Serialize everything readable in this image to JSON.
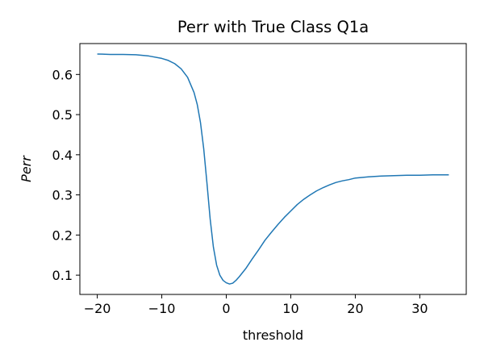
{
  "chart_data": {
    "type": "line",
    "title": "Perr with True Class Q1a",
    "xlabel": "threshold",
    "ylabel": "Perr",
    "xlim": [
      -22.7,
      37.2
    ],
    "ylim": [
      0.052,
      0.677
    ],
    "xticks": [
      -20,
      -10,
      0,
      10,
      20,
      30
    ],
    "xtick_labels": [
      "−20",
      "−10",
      "0",
      "10",
      "20",
      "30"
    ],
    "yticks": [
      0.1,
      0.2,
      0.3,
      0.4,
      0.5,
      0.6
    ],
    "ytick_labels": [
      "0.1",
      "0.2",
      "0.3",
      "0.4",
      "0.5",
      "0.6"
    ],
    "grid": false,
    "series": [
      {
        "color": "#1f77b4",
        "x": [
          -20,
          -18,
          -16,
          -14,
          -12,
          -10,
          -9,
          -8,
          -7,
          -6,
          -5,
          -4.5,
          -4,
          -3.5,
          -3,
          -2.5,
          -2,
          -1.5,
          -1,
          -0.5,
          0,
          0.5,
          1,
          1.5,
          2,
          3,
          4,
          5,
          6,
          7,
          8,
          9,
          10,
          11,
          12,
          13,
          14,
          15,
          16,
          17,
          18,
          19,
          20,
          22,
          24,
          26,
          28,
          30,
          32,
          34.5
        ],
        "y": [
          0.651,
          0.65,
          0.65,
          0.649,
          0.646,
          0.64,
          0.635,
          0.627,
          0.614,
          0.593,
          0.555,
          0.525,
          0.48,
          0.415,
          0.33,
          0.24,
          0.17,
          0.125,
          0.1,
          0.087,
          0.081,
          0.078,
          0.08,
          0.087,
          0.096,
          0.116,
          0.14,
          0.163,
          0.187,
          0.207,
          0.226,
          0.244,
          0.26,
          0.276,
          0.289,
          0.3,
          0.31,
          0.318,
          0.325,
          0.331,
          0.335,
          0.338,
          0.342,
          0.345,
          0.347,
          0.348,
          0.349,
          0.349,
          0.35,
          0.35
        ]
      }
    ]
  }
}
